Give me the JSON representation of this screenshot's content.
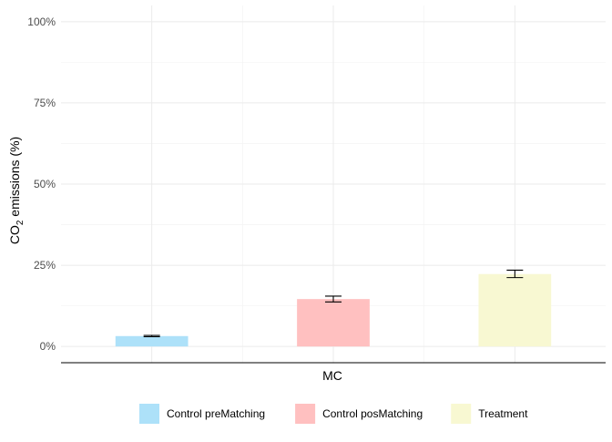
{
  "chart_data": {
    "type": "bar",
    "categories": [
      "MC"
    ],
    "series": [
      {
        "name": "Control preMatching",
        "values": [
          3.2
        ],
        "error": [
          3.0,
          3.4
        ],
        "color": "#ade1f9"
      },
      {
        "name": "Control posMatching",
        "values": [
          14.6
        ],
        "error": [
          13.7,
          15.5
        ],
        "color": "#ffc0c0"
      },
      {
        "name": "Treatment",
        "values": [
          22.3
        ],
        "error": [
          21.2,
          23.5
        ],
        "color": "#f8f8d2"
      }
    ],
    "ylim": [
      -5,
      105
    ],
    "yticks": [
      0,
      25,
      50,
      75,
      100
    ],
    "ytick_labels": [
      "0%",
      "25%",
      "50%",
      "75%",
      "100%"
    ],
    "xlabel": "MC",
    "ylabel_main": "CO",
    "ylabel_sub": "2",
    "ylabel_rest": " emissions (%)",
    "grid": true,
    "legend_position": "bottom"
  }
}
